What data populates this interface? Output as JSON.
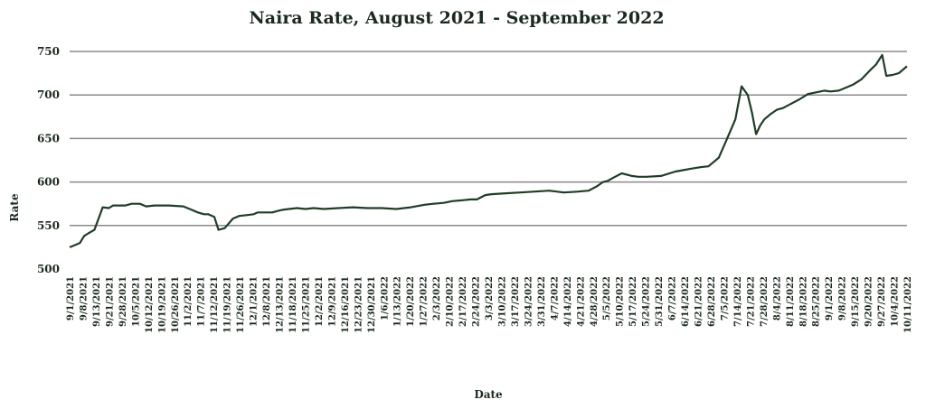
{
  "chart_data": {
    "type": "line",
    "title": "Naira Rate, August 2021 - September 2022",
    "xlabel": "Date",
    "ylabel": "Rate",
    "ylim": [
      500,
      750
    ],
    "yticks": [
      500,
      550,
      600,
      650,
      700,
      750
    ],
    "grid": true,
    "legend": "none",
    "colors": {
      "line": "#1f3d26",
      "grid": "#8a8a8a",
      "text": "#1a2a1c"
    },
    "x_start": "9/1/2021",
    "x_end": "10/11/2022",
    "tick_labels": [
      "9/1/2021",
      "9/8/2021",
      "9/13/2021",
      "9/21/2021",
      "9/28/2021",
      "10/5/2021",
      "10/12/2021",
      "10/19/2021",
      "10/26/2021",
      "11/2/2021",
      "11/7/2021",
      "11/12/2021",
      "11/19/2021",
      "11/26/2021",
      "12/1/2021",
      "12/8/2021",
      "12/13/2021",
      "11/18/2021",
      "11/25/2021",
      "12/2/2021",
      "12/9/2021",
      "12/16/2021",
      "12/23/2021",
      "12/30/2021",
      "1/6/2022",
      "1/13/2022",
      "1/20/2022",
      "1/27/2022",
      "2/3/2022",
      "2/10/2022",
      "2/17/2022",
      "2/24/2022",
      "3/3/2022",
      "3/10/2022",
      "3/17/2022",
      "3/24/2022",
      "3/31/2022",
      "4/7/2022",
      "4/14/2022",
      "4/21/2022",
      "4/28/2022",
      "5/5/2022",
      "5/10/2022",
      "5/17/2022",
      "5/24/2022",
      "5/31/2022",
      "6/7/2022",
      "6/14/2022",
      "6/21/2022",
      "6/28/2022",
      "7/5/2022",
      "7/14/2022",
      "7/21/2022",
      "7/28/2022",
      "8/4/2022",
      "8/11/2022",
      "8/18/2022",
      "8/25/2022",
      "9/1/2022",
      "9/8/2022",
      "9/15/2022",
      "9/20/2022",
      "9/27/2022",
      "10/4/2022",
      "10/11/2022"
    ],
    "series": [
      {
        "x": [
          "9/1/2021",
          "9/3/2021",
          "9/6/2021",
          "9/8/2021",
          "9/10/2021",
          "9/13/2021",
          "9/15/2021",
          "9/17/2021",
          "9/20/2021",
          "9/22/2021",
          "9/25/2021",
          "9/28/2021",
          "10/1/2021",
          "10/5/2021",
          "10/8/2021",
          "10/12/2021",
          "10/19/2021",
          "10/26/2021",
          "10/30/2021",
          "11/2/2021",
          "11/5/2021",
          "11/7/2021",
          "11/10/2021",
          "11/12/2021",
          "11/15/2021",
          "11/19/2021",
          "11/22/2021",
          "11/26/2021",
          "11/29/2021",
          "12/1/2021",
          "12/4/2021",
          "12/8/2021",
          "12/11/2021",
          "12/13/2021",
          "12/16/2021",
          "12/20/2021",
          "12/24/2021",
          "12/28/2021",
          "1/2/2022",
          "1/9/2022",
          "1/16/2022",
          "1/23/2022",
          "1/30/2022",
          "2/6/2022",
          "2/13/2022",
          "2/20/2022",
          "2/24/2022",
          "3/1/2022",
          "3/5/2022",
          "3/10/2022",
          "3/14/2022",
          "3/17/2022",
          "3/21/2022",
          "3/24/2022",
          "3/31/2022",
          "4/7/2022",
          "4/14/2022",
          "4/21/2022",
          "4/28/2022",
          "5/5/2022",
          "5/10/2022",
          "5/14/2022",
          "5/17/2022",
          "5/19/2022",
          "5/22/2022",
          "5/26/2022",
          "5/31/2022",
          "6/3/2022",
          "6/7/2022",
          "6/14/2022",
          "6/21/2022",
          "6/28/2022",
          "7/3/2022",
          "7/7/2022",
          "7/12/2022",
          "7/16/2022",
          "7/20/2022",
          "7/23/2022",
          "7/26/2022",
          "7/28/2022",
          "7/30/2022",
          "8/1/2022",
          "8/3/2022",
          "8/6/2022",
          "8/9/2022",
          "8/12/2022",
          "8/16/2022",
          "8/20/2022",
          "8/24/2022",
          "8/28/2022",
          "9/1/2022",
          "9/4/2022",
          "9/8/2022",
          "9/11/2022",
          "9/15/2022",
          "9/19/2022",
          "9/23/2022",
          "9/26/2022",
          "9/29/2022",
          "10/1/2022",
          "10/4/2022",
          "10/7/2022",
          "10/11/2022"
        ],
        "values": [
          525,
          527,
          530,
          538,
          541,
          545,
          558,
          571,
          570,
          573,
          573,
          573,
          575,
          575,
          572,
          573,
          573,
          572,
          568,
          565,
          563,
          563,
          560,
          545,
          547,
          558,
          561,
          562,
          563,
          565,
          565,
          565,
          567,
          568,
          569,
          570,
          569,
          570,
          569,
          570,
          571,
          570,
          570,
          569,
          571,
          574,
          575,
          576,
          578,
          579,
          580,
          580,
          585,
          586,
          587,
          588,
          589,
          590,
          588,
          589,
          590,
          595,
          600,
          601,
          605,
          610,
          607,
          606,
          606,
          607,
          612,
          615,
          617,
          618,
          628,
          650,
          672,
          710,
          700,
          680,
          655,
          665,
          672,
          678,
          683,
          685,
          690,
          695,
          701,
          703,
          705,
          704,
          705,
          708,
          712,
          718,
          728,
          735,
          746,
          722,
          723,
          725,
          733
        ]
      }
    ]
  }
}
